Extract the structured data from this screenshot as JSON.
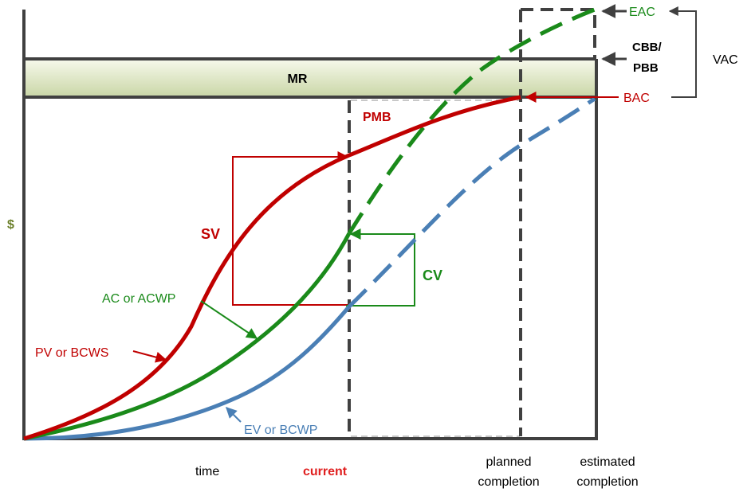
{
  "labels": {
    "mr": "MR",
    "pmb": "PMB",
    "sv": "SV",
    "cv": "CV",
    "dollar": "$",
    "eac": "EAC",
    "cbb_line1": "CBB/",
    "cbb_line2": "PBB",
    "bac": "BAC",
    "vac": "VAC",
    "pv": "PV or BCWS",
    "ac": "AC or ACWP",
    "ev": "EV or BCWP",
    "time": "time",
    "current": "current",
    "planned_line1": "planned",
    "planned_line2": "completion",
    "estimated_line1": "estimated",
    "estimated_line2": "completion"
  },
  "colors": {
    "pv": "#c00000",
    "ac": "#1a8a1a",
    "ev": "#4a7fb5",
    "frame": "#404040",
    "dollar": "#6b7f2a"
  }
}
